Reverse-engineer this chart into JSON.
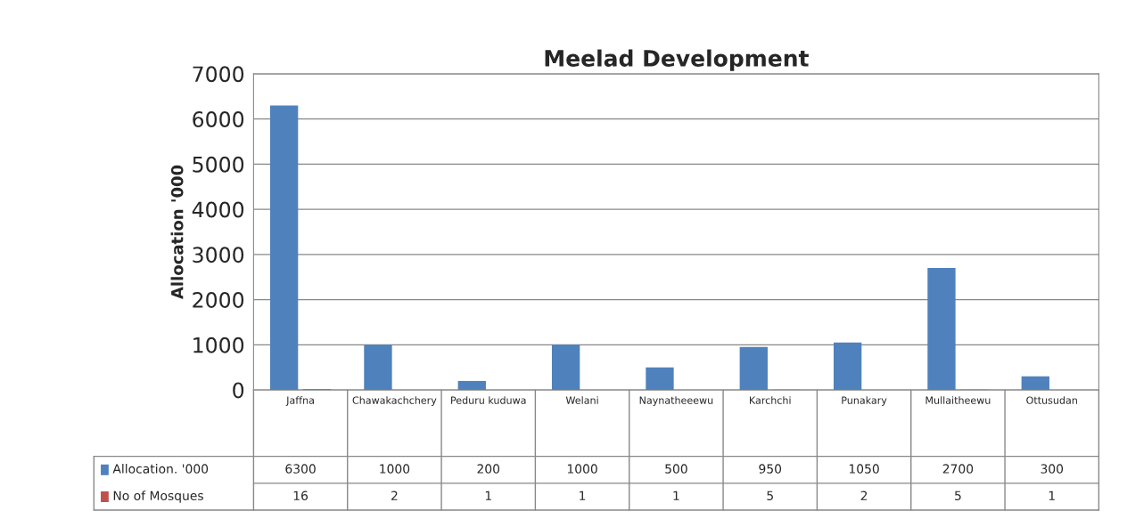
{
  "chart_data": {
    "type": "bar",
    "title": "Meelad Development",
    "ylabel": "Allocation '000",
    "categories": [
      "Jaffna",
      "Chawakachchery",
      "Peduru kuduwa",
      "Welani",
      "Naynatheeewu",
      "Karchchi",
      "Punakary",
      "Mullaitheewu",
      "Ottusudan"
    ],
    "series": [
      {
        "name": "Allocation. '000",
        "color": "#4f81bd",
        "values": [
          6300,
          1000,
          200,
          1000,
          500,
          950,
          1050,
          2700,
          300
        ]
      },
      {
        "name": "No of Mosques",
        "color": "#c0504d",
        "values": [
          16,
          2,
          1,
          1,
          1,
          5,
          2,
          5,
          1
        ]
      }
    ],
    "ylim": [
      0,
      7000
    ],
    "yticks": [
      0,
      1000,
      2000,
      3000,
      4000,
      5000,
      6000,
      7000
    ],
    "grid": "y",
    "data_labels": true,
    "legend": "bottom"
  }
}
